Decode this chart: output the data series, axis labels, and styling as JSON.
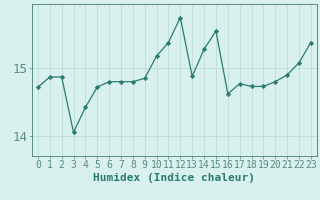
{
  "x": [
    0,
    1,
    2,
    3,
    4,
    5,
    6,
    7,
    8,
    9,
    10,
    11,
    12,
    13,
    14,
    15,
    16,
    17,
    18,
    19,
    20,
    21,
    22,
    23
  ],
  "y": [
    14.72,
    14.87,
    14.87,
    14.05,
    14.42,
    14.72,
    14.8,
    14.8,
    14.8,
    14.85,
    15.18,
    15.38,
    15.75,
    14.88,
    15.28,
    15.55,
    14.62,
    14.77,
    14.73,
    14.73,
    14.8,
    14.9,
    15.08,
    15.38
  ],
  "line_color": "#2a7d6e",
  "bg_color": "#d8f0ee",
  "grid_color": "#b8d8d4",
  "xlabel": "Humidex (Indice chaleur)",
  "yticks": [
    14,
    15
  ],
  "xlim": [
    -0.5,
    23.5
  ],
  "ylim": [
    13.7,
    15.95
  ],
  "axis_color": "#5a8a80",
  "tick_label_color": "#2a7d6e",
  "xlabel_fontsize": 8,
  "ytick_fontsize": 9,
  "xtick_fontsize": 7
}
